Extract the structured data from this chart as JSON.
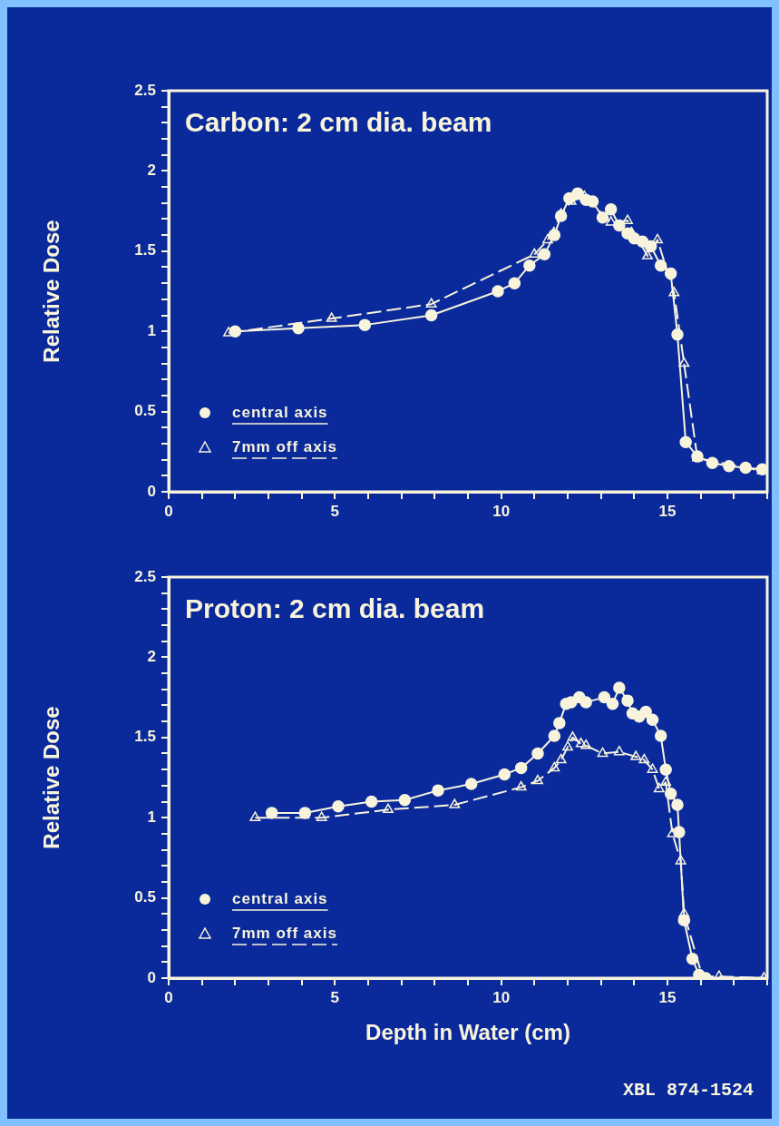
{
  "chart_data": [
    {
      "type": "line",
      "title": "Carbon: 2 cm dia. beam",
      "ylabel": "Relative Dose",
      "xlim": [
        0,
        18
      ],
      "ylim": [
        0,
        2.5
      ],
      "xticks": [
        0,
        {
          "value": 1,
          "label": null
        },
        {
          "value": 2,
          "label": null
        },
        {
          "value": 3,
          "label": null
        },
        {
          "value": 4,
          "label": null
        },
        5,
        {
          "value": 6,
          "label": null
        },
        {
          "value": 7,
          "label": null
        },
        {
          "value": 8,
          "label": null
        },
        {
          "value": 9,
          "label": null
        },
        10,
        {
          "value": 11,
          "label": null
        },
        {
          "value": 12,
          "label": null
        },
        {
          "value": 13,
          "label": null
        },
        {
          "value": 14,
          "label": null
        },
        15,
        {
          "value": 16,
          "label": null
        },
        {
          "value": 17,
          "label": null
        },
        {
          "value": 18,
          "label": null
        }
      ],
      "yticks": [
        0,
        {
          "value": 0.1,
          "label": null
        },
        {
          "value": 0.2,
          "label": null
        },
        {
          "value": 0.3,
          "label": null
        },
        {
          "value": 0.4,
          "label": null
        },
        0.5,
        {
          "value": 0.6,
          "label": null
        },
        {
          "value": 0.7,
          "label": null
        },
        {
          "value": 0.8,
          "label": null
        },
        {
          "value": 0.9,
          "label": null
        },
        1,
        {
          "value": 1.1,
          "label": null
        },
        {
          "value": 1.2,
          "label": null
        },
        {
          "value": 1.3,
          "label": null
        },
        {
          "value": 1.4,
          "label": null
        },
        1.5,
        {
          "value": 1.6,
          "label": null
        },
        {
          "value": 1.7,
          "label": null
        },
        {
          "value": 1.8,
          "label": null
        },
        {
          "value": 1.9,
          "label": null
        },
        2,
        {
          "value": 2.1,
          "label": null
        },
        {
          "value": 2.2,
          "label": null
        },
        {
          "value": 2.3,
          "label": null
        },
        {
          "value": 2.4,
          "label": null
        },
        2.5
      ],
      "legend": "bottom left",
      "series": [
        {
          "name": "central axis",
          "color": "#f8f4dc",
          "marker": "circle",
          "line_style": "solid",
          "x": [
            2.0,
            3.9,
            5.9,
            7.9,
            9.9,
            10.4,
            10.85,
            11.3,
            11.6,
            11.8,
            12.05,
            12.3,
            12.55,
            12.75,
            13.05,
            13.3,
            13.55,
            13.8,
            14.0,
            14.25,
            14.5,
            14.8,
            15.1,
            15.3,
            15.55,
            15.9,
            16.35,
            16.85,
            17.35,
            17.85
          ],
          "values": [
            1.0,
            1.02,
            1.04,
            1.1,
            1.25,
            1.3,
            1.41,
            1.48,
            1.6,
            1.72,
            1.83,
            1.86,
            1.82,
            1.81,
            1.71,
            1.76,
            1.66,
            1.61,
            1.58,
            1.56,
            1.53,
            1.41,
            1.36,
            0.98,
            0.31,
            0.22,
            0.18,
            0.16,
            0.15,
            0.14
          ]
        },
        {
          "name": "7mm off axis",
          "color": "#f8f4dc",
          "marker": "triangle",
          "line_style": "dashed",
          "x": [
            1.8,
            4.9,
            7.9,
            11.0,
            11.4,
            11.8,
            12.1,
            12.5,
            13.3,
            13.8,
            14.4,
            14.7,
            15.2,
            15.5,
            15.9,
            17.85
          ],
          "values": [
            0.99,
            1.08,
            1.17,
            1.48,
            1.57,
            1.73,
            1.81,
            1.84,
            1.68,
            1.69,
            1.47,
            1.57,
            1.24,
            0.8,
            0.21,
            0.13
          ]
        }
      ]
    },
    {
      "type": "line",
      "title": "Proton: 2 cm dia. beam",
      "xlabel": "Depth in Water (cm)",
      "ylabel": "Relative Dose",
      "xlim": [
        0,
        18
      ],
      "ylim": [
        0,
        2.5
      ],
      "xticks": [
        0,
        {
          "value": 1,
          "label": null
        },
        {
          "value": 2,
          "label": null
        },
        {
          "value": 3,
          "label": null
        },
        {
          "value": 4,
          "label": null
        },
        5,
        {
          "value": 6,
          "label": null
        },
        {
          "value": 7,
          "label": null
        },
        {
          "value": 8,
          "label": null
        },
        {
          "value": 9,
          "label": null
        },
        10,
        {
          "value": 11,
          "label": null
        },
        {
          "value": 12,
          "label": null
        },
        {
          "value": 13,
          "label": null
        },
        {
          "value": 14,
          "label": null
        },
        15,
        {
          "value": 16,
          "label": null
        },
        {
          "value": 17,
          "label": null
        },
        {
          "value": 18,
          "label": null
        }
      ],
      "yticks": [
        0,
        {
          "value": 0.1,
          "label": null
        },
        {
          "value": 0.2,
          "label": null
        },
        {
          "value": 0.3,
          "label": null
        },
        {
          "value": 0.4,
          "label": null
        },
        0.5,
        {
          "value": 0.6,
          "label": null
        },
        {
          "value": 0.7,
          "label": null
        },
        {
          "value": 0.8,
          "label": null
        },
        {
          "value": 0.9,
          "label": null
        },
        1,
        {
          "value": 1.1,
          "label": null
        },
        {
          "value": 1.2,
          "label": null
        },
        {
          "value": 1.3,
          "label": null
        },
        {
          "value": 1.4,
          "label": null
        },
        1.5,
        {
          "value": 1.6,
          "label": null
        },
        {
          "value": 1.7,
          "label": null
        },
        {
          "value": 1.8,
          "label": null
        },
        {
          "value": 1.9,
          "label": null
        },
        2,
        {
          "value": 2.1,
          "label": null
        },
        {
          "value": 2.2,
          "label": null
        },
        {
          "value": 2.3,
          "label": null
        },
        {
          "value": 2.4,
          "label": null
        },
        2.5
      ],
      "legend": "bottom left",
      "annotations": [
        "XBL 874-1524"
      ],
      "series": [
        {
          "name": "central axis",
          "color": "#f8f4dc",
          "marker": "circle",
          "line_style": "solid",
          "x": [
            3.1,
            4.1,
            5.1,
            6.1,
            7.1,
            8.1,
            9.1,
            10.1,
            10.6,
            11.1,
            11.6,
            11.75,
            11.95,
            12.1,
            12.35,
            12.55,
            13.1,
            13.35,
            13.55,
            13.8,
            13.95,
            14.15,
            14.35,
            14.55,
            14.8,
            14.95,
            15.1,
            15.3,
            15.35,
            15.5,
            15.75,
            15.95,
            16.15
          ],
          "values": [
            1.03,
            1.03,
            1.07,
            1.1,
            1.11,
            1.17,
            1.21,
            1.27,
            1.31,
            1.4,
            1.51,
            1.59,
            1.71,
            1.72,
            1.75,
            1.72,
            1.75,
            1.71,
            1.81,
            1.73,
            1.65,
            1.63,
            1.66,
            1.61,
            1.51,
            1.3,
            1.15,
            1.08,
            0.91,
            0.36,
            0.12,
            0.02,
            0.0
          ]
        },
        {
          "name": "7mm off axis",
          "color": "#f8f4dc",
          "marker": "triangle",
          "line_style": "dashed",
          "x": [
            2.6,
            4.6,
            6.6,
            8.6,
            10.6,
            11.1,
            11.6,
            11.8,
            12.0,
            12.15,
            12.4,
            12.55,
            13.05,
            13.55,
            14.05,
            14.3,
            14.55,
            14.75,
            14.95,
            15.15,
            15.4,
            15.5,
            16.05,
            16.55,
            17.9
          ],
          "values": [
            1.0,
            1.0,
            1.05,
            1.08,
            1.19,
            1.23,
            1.31,
            1.36,
            1.44,
            1.5,
            1.46,
            1.45,
            1.4,
            1.41,
            1.38,
            1.36,
            1.3,
            1.18,
            1.22,
            0.9,
            0.73,
            0.4,
            0.01,
            0.01,
            0.0
          ]
        }
      ]
    }
  ]
}
